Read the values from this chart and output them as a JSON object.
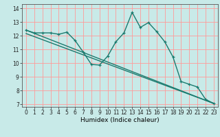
{
  "title": "",
  "xlabel": "Humidex (Indice chaleur)",
  "bg_color": "#c8eae8",
  "grid_color": "#ff9999",
  "line_color": "#1a7a6e",
  "xlim": [
    -0.5,
    23.5
  ],
  "ylim": [
    6.8,
    14.3
  ],
  "xticks": [
    0,
    1,
    2,
    3,
    4,
    5,
    6,
    7,
    8,
    9,
    10,
    11,
    12,
    13,
    14,
    15,
    16,
    17,
    18,
    19,
    20,
    21,
    22,
    23
  ],
  "yticks": [
    7,
    8,
    9,
    10,
    11,
    12,
    13,
    14
  ],
  "curve1_x": [
    0,
    1,
    2,
    3,
    4,
    5,
    6,
    7,
    8,
    9,
    10,
    11,
    12,
    13,
    14,
    15,
    16,
    17,
    18,
    19,
    20,
    21,
    22,
    23
  ],
  "curve1_y": [
    12.4,
    12.2,
    12.2,
    12.2,
    12.1,
    12.25,
    11.65,
    10.8,
    9.9,
    9.85,
    10.5,
    11.55,
    12.2,
    13.7,
    12.6,
    12.95,
    12.3,
    11.55,
    10.45,
    8.65,
    8.45,
    8.25,
    7.35,
    7.05
  ],
  "curve2_x": [
    0,
    23
  ],
  "curve2_y": [
    12.4,
    7.05
  ],
  "curve3_x": [
    0,
    23
  ],
  "curve3_y": [
    12.15,
    7.05
  ],
  "line_width": 1.0,
  "marker_size": 3.0,
  "tick_fontsize": 5.5,
  "xlabel_fontsize": 6.5
}
